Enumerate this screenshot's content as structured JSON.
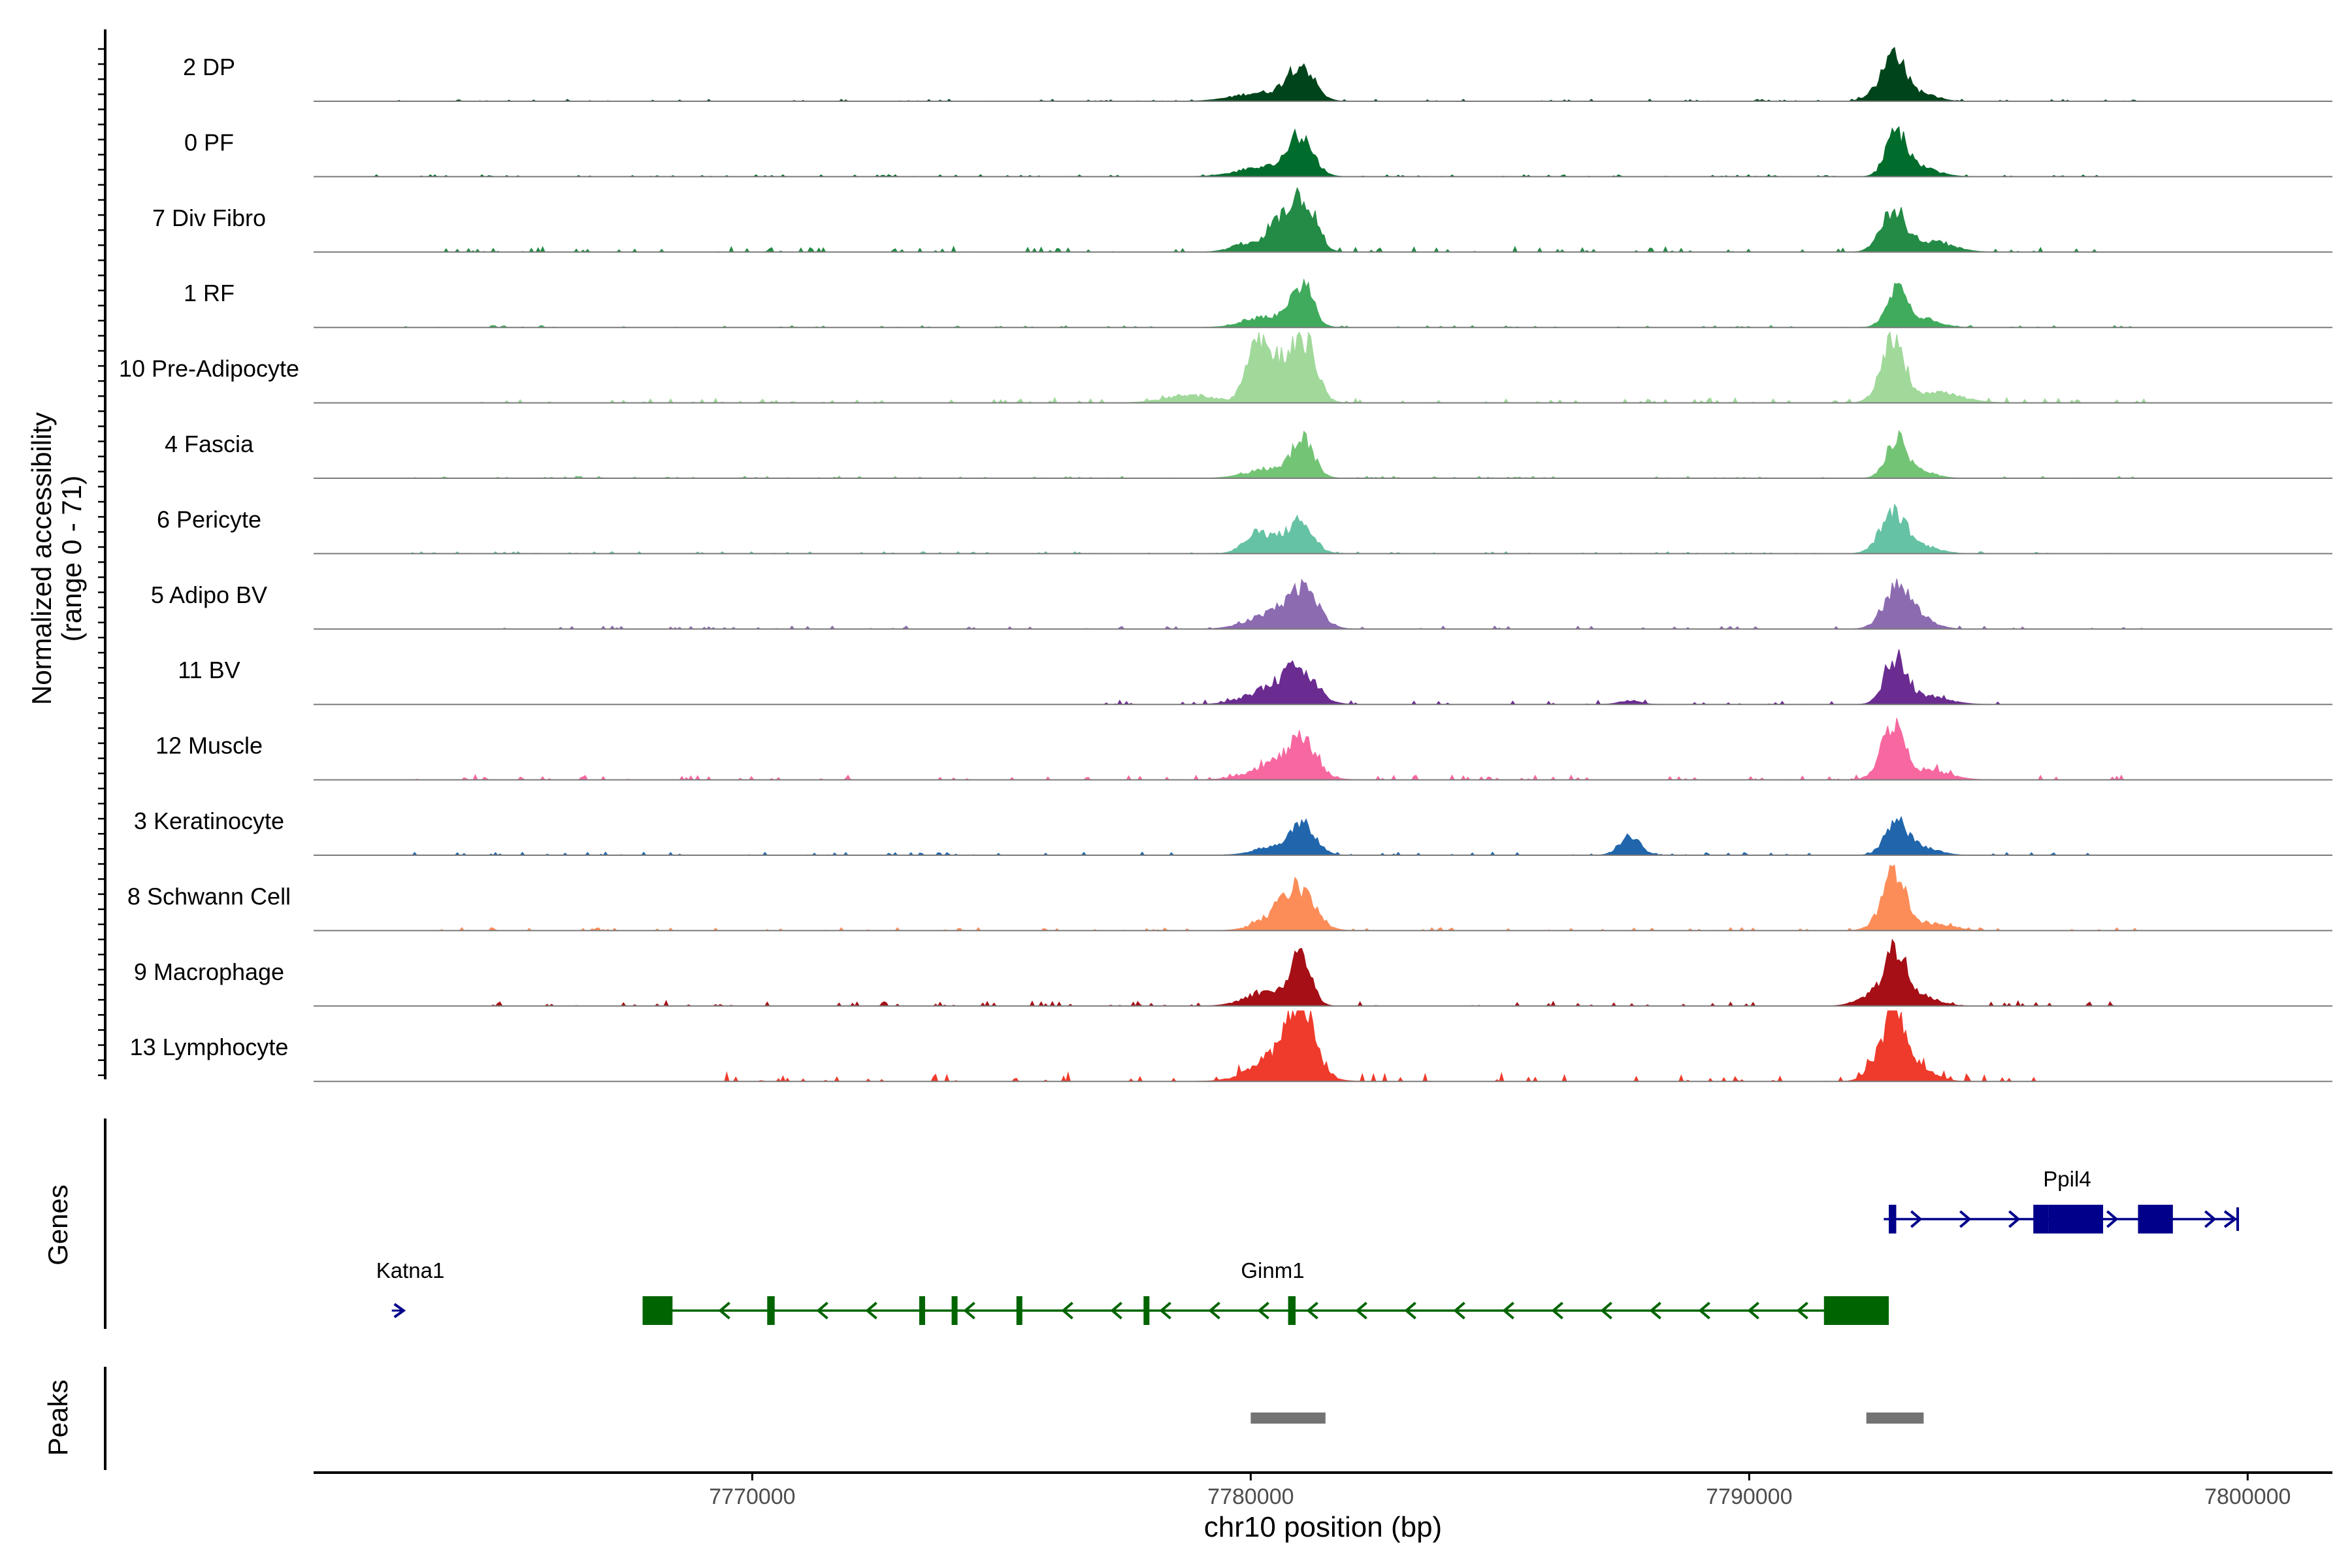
{
  "chart_data": {
    "type": "area",
    "ylabel": "Normalized accessibility",
    "ylabel_range": "(range 0 - 71)",
    "ylim": [
      0,
      71
    ],
    "xlabel": "chr10 position (bp)",
    "xlim": [
      7761200,
      7801700
    ],
    "xticks": [
      7770000,
      7780000,
      7790000,
      7800000
    ],
    "xtick_labels": [
      "7770000",
      "7780000",
      "7790000",
      "7800000"
    ],
    "panel_labels": [
      "Genes",
      "Peaks"
    ],
    "tracks": [
      {
        "name": "2 DP",
        "color": "#00441b",
        "peaks": [
          [
            7780200,
            9,
            520
          ],
          [
            7781000,
            38,
            260
          ],
          [
            7792700,
            18,
            240
          ],
          [
            7792950,
            40,
            180
          ],
          [
            7793400,
            10,
            300
          ]
        ],
        "noise": [
          [
            7762000,
            7798000,
            2
          ]
        ]
      },
      {
        "name": "0 PF",
        "color": "#006d2c",
        "peaks": [
          [
            7780300,
            10,
            520
          ],
          [
            7781000,
            40,
            250
          ],
          [
            7792950,
            45,
            200
          ],
          [
            7793400,
            10,
            350
          ]
        ],
        "noise": [
          [
            7762000,
            7798000,
            2
          ]
        ]
      },
      {
        "name": "7 Div Fibro",
        "color": "#238b45",
        "peaks": [
          [
            7779900,
            8,
            300
          ],
          [
            7780600,
            30,
            250
          ],
          [
            7781050,
            55,
            240
          ],
          [
            7792700,
            14,
            200
          ],
          [
            7792950,
            38,
            220
          ],
          [
            7793700,
            10,
            400
          ]
        ],
        "noise": [
          [
            7763000,
            7798000,
            5
          ]
        ]
      },
      {
        "name": "1 RF",
        "color": "#41ab5d",
        "peaks": [
          [
            7780400,
            12,
            450
          ],
          [
            7781050,
            45,
            200
          ],
          [
            7792950,
            42,
            200
          ],
          [
            7793500,
            10,
            300
          ]
        ],
        "noise": [
          [
            7763000,
            7798000,
            2
          ]
        ]
      },
      {
        "name": "10 Pre-Adipocyte",
        "color": "#a1d99b",
        "peaks": [
          [
            7778800,
            8,
            500
          ],
          [
            7780100,
            68,
            200
          ],
          [
            7780600,
            45,
            250
          ],
          [
            7781100,
            62,
            230
          ],
          [
            7792700,
            22,
            200
          ],
          [
            7792950,
            58,
            180
          ],
          [
            7793700,
            12,
            500
          ]
        ],
        "noise": [
          [
            7764000,
            7798000,
            5
          ]
        ]
      },
      {
        "name": "4 Fascia",
        "color": "#74c476",
        "peaks": [
          [
            7780400,
            10,
            450
          ],
          [
            7781050,
            38,
            220
          ],
          [
            7792950,
            40,
            200
          ],
          [
            7793400,
            8,
            300
          ]
        ],
        "noise": [
          [
            7763000,
            7798000,
            2
          ]
        ]
      },
      {
        "name": "6 Pericyte",
        "color": "#66c2a4",
        "peaks": [
          [
            7780100,
            18,
            250
          ],
          [
            7780500,
            10,
            300
          ],
          [
            7781000,
            32,
            250
          ],
          [
            7792650,
            12,
            200
          ],
          [
            7792950,
            40,
            220
          ],
          [
            7793500,
            8,
            300
          ]
        ],
        "noise": [
          [
            7763000,
            7798000,
            2
          ]
        ]
      },
      {
        "name": "5 Adipo BV",
        "color": "#8c6bb1",
        "peaks": [
          [
            7780400,
            15,
            450
          ],
          [
            7781050,
            40,
            300
          ],
          [
            7792950,
            42,
            260
          ],
          [
            7793400,
            12,
            300
          ]
        ],
        "noise": [
          [
            7763000,
            7798000,
            3
          ]
        ]
      },
      {
        "name": "11 BV",
        "color": "#6a2c91",
        "peaks": [
          [
            7780500,
            18,
            500
          ],
          [
            7781000,
            30,
            300
          ],
          [
            7792950,
            48,
            220
          ],
          [
            7793600,
            8,
            400
          ],
          [
            7787600,
            4,
            200
          ]
        ],
        "noise": [
          [
            7777000,
            7795000,
            4
          ]
        ]
      },
      {
        "name": "12 Muscle",
        "color": "#f768a1",
        "peaks": [
          [
            7780600,
            20,
            500
          ],
          [
            7781050,
            30,
            250
          ],
          [
            7792700,
            18,
            200
          ],
          [
            7792950,
            50,
            200
          ],
          [
            7793600,
            10,
            400
          ]
        ],
        "noise": [
          [
            7763000,
            7798000,
            5
          ]
        ]
      },
      {
        "name": "3 Keratinocyte",
        "color": "#2166ac",
        "peaks": [
          [
            7780500,
            8,
            400
          ],
          [
            7781050,
            30,
            250
          ],
          [
            7787600,
            22,
            200
          ],
          [
            7792950,
            35,
            220
          ],
          [
            7793500,
            8,
            300
          ]
        ],
        "noise": [
          [
            7763000,
            7798000,
            3
          ]
        ]
      },
      {
        "name": "8 Schwann Cell",
        "color": "#fc8d59",
        "peaks": [
          [
            7780600,
            18,
            400
          ],
          [
            7781000,
            35,
            300
          ],
          [
            7792800,
            22,
            250
          ],
          [
            7792950,
            45,
            200
          ],
          [
            7793600,
            8,
            400
          ]
        ],
        "noise": [
          [
            7763000,
            7798000,
            3
          ]
        ]
      },
      {
        "name": "9 Macrophage",
        "color": "#a50f15",
        "peaks": [
          [
            7780300,
            15,
            400
          ],
          [
            7781000,
            55,
            200
          ],
          [
            7792950,
            55,
            220
          ],
          [
            7792500,
            12,
            300
          ],
          [
            7793500,
            10,
            300
          ]
        ],
        "noise": [
          [
            7764000,
            7798000,
            5
          ]
        ]
      },
      {
        "name": "13 Lymphocyte",
        "color": "#ef3b2c",
        "peaks": [
          [
            7780600,
            30,
            500
          ],
          [
            7781000,
            70,
            250
          ],
          [
            7792700,
            30,
            250
          ],
          [
            7792950,
            52,
            200
          ],
          [
            7793400,
            15,
            300
          ]
        ],
        "noise": [
          [
            7769000,
            7796000,
            8
          ]
        ]
      }
    ],
    "genes": [
      {
        "name": "Katna1",
        "strand": "+",
        "start": 7762900,
        "end": 7763100,
        "color": "#00008b",
        "row": 1,
        "exons": []
      },
      {
        "name": "Ginm1",
        "strand": "-",
        "start": 7767800,
        "end": 7792800,
        "color": "#006400",
        "row": 1,
        "exons": [
          [
            7767800,
            7768400
          ],
          [
            7770300,
            7770450
          ],
          [
            7773350,
            7773450
          ],
          [
            7774000,
            7774100
          ],
          [
            7775300,
            7775400
          ],
          [
            7777850,
            7777950
          ],
          [
            7780750,
            7780900
          ],
          [
            7791500,
            7792800
          ]
        ]
      },
      {
        "name": "Ppil4",
        "strand": "+",
        "start": 7792700,
        "end": 7799800,
        "color": "#00008b",
        "row": 0,
        "exons": [
          [
            7792800,
            7792950
          ],
          [
            7795700,
            7796000
          ],
          [
            7796000,
            7797100
          ],
          [
            7797800,
            7798500
          ]
        ]
      }
    ],
    "peaks": [
      [
        7780000,
        7781500
      ],
      [
        7792350,
        7793500
      ]
    ],
    "peak_color": "#737373"
  }
}
